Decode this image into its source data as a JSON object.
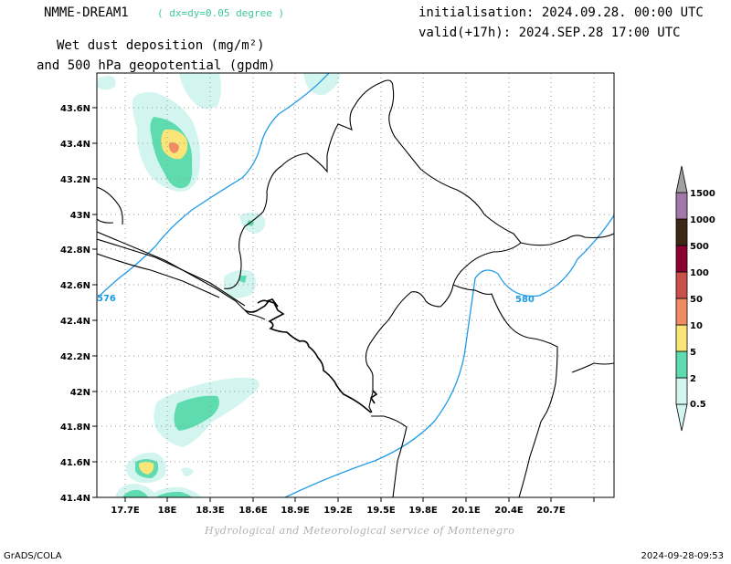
{
  "header": {
    "model": "NMME-DREAM1",
    "resolution": "( dx=dy=0.05 degree )",
    "init": "initialisation: 2024.09.28. 00:00 UTC",
    "valid": "valid(+17h): 2024.SEP.28 17:00 UTC",
    "field_line1": "Wet dust deposition (mg/m²)",
    "field_line2": "and 500 hPa geopotential (gpdm)"
  },
  "axes": {
    "lat_ticks": [
      "43.6N",
      "43.4N",
      "43.2N",
      "43N",
      "42.8N",
      "42.6N",
      "42.4N",
      "42.2N",
      "42N",
      "41.8N",
      "41.6N",
      "41.4N"
    ],
    "lon_ticks": [
      "17.7E",
      "18E",
      "18.3E",
      "18.6E",
      "18.9E",
      "19.2E",
      "19.5E",
      "19.8E",
      "20.1E",
      "20.4E",
      "20.7E"
    ]
  },
  "contours": {
    "label_576": "576",
    "label_580": "580",
    "color": "#1e9be6"
  },
  "legend": {
    "levels": [
      "0.5",
      "2",
      "5",
      "10",
      "50",
      "100",
      "500",
      "1000",
      "1500"
    ],
    "colors": [
      "#d2f5f0",
      "#5fdcaf",
      "#fae678",
      "#f08c64",
      "#c8504b",
      "#8c0032",
      "#3c2814",
      "#a078aa",
      "#a0a0a0"
    ]
  },
  "footer": {
    "credit": "Hydrological and Meteorological service of Montenegro",
    "software": "GrADS/COLA",
    "timestamp": "2024-09-28-09:53"
  }
}
